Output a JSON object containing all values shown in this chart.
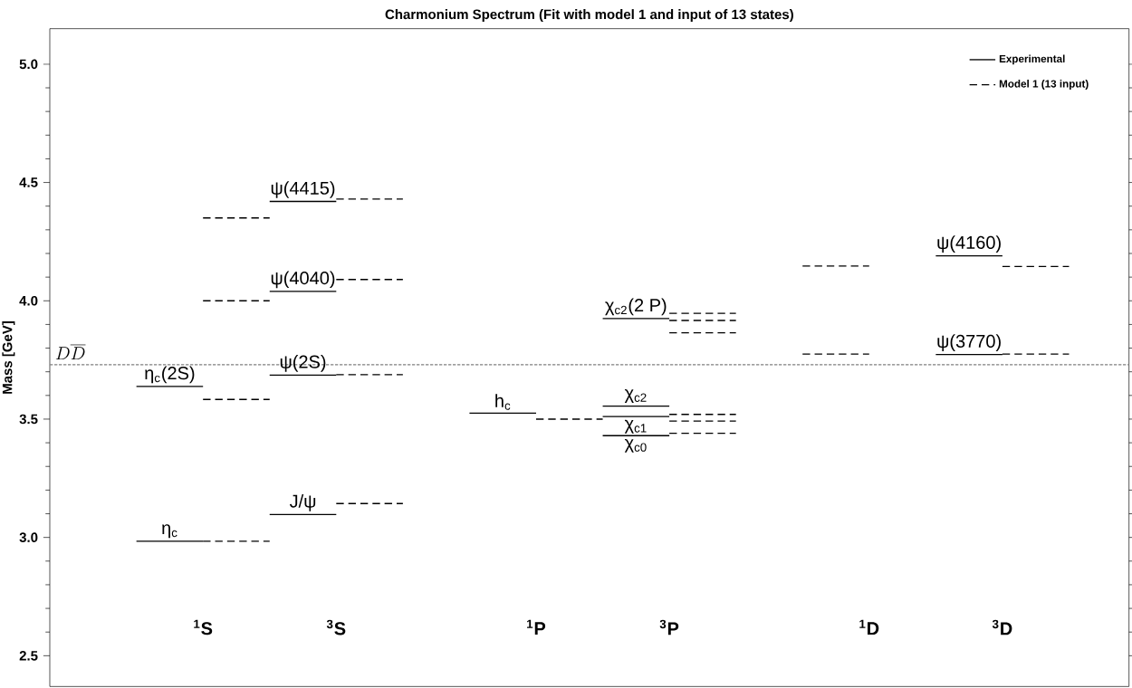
{
  "chart_data": {
    "type": "line",
    "title": "Charmonium Spectrum (Fit with model 1 and input of 13 states)",
    "ylabel": "Mass [GeV]",
    "categories": [
      null,
      null,
      null,
      null,
      "$^{1}$S",
      null,
      null,
      null,
      "$^{3}$S",
      null,
      null,
      null,
      null,
      null,
      "$^{1}$P",
      null,
      null,
      null,
      "$^{3}$P",
      null,
      null,
      null,
      null,
      null,
      "$^{1}$D",
      null,
      null,
      null,
      "$^{3}$D",
      null,
      null,
      null,
      null
    ],
    "ylim": [
      2.37,
      5.15
    ],
    "yticks": [
      2.5,
      {
        "value": 3,
        "label": "3.0"
      },
      3.5,
      {
        "value": 4,
        "label": "4.0"
      },
      4.5,
      {
        "value": 5,
        "label": "5.0"
      }
    ],
    "series": [
      {
        "name": "Experimental",
        "color": "#000000",
        "line_style": "solid",
        "values": [
          null,
          null,
          2.984,
          2.984,
          2.984,
          null,
          3.097,
          3.097,
          3.097,
          null,
          null,
          null,
          3.525,
          3.525,
          3.525,
          null,
          3.43,
          3.43,
          3.43,
          null,
          null,
          null,
          null,
          null,
          null,
          null,
          3.773,
          3.773,
          3.773,
          null,
          null,
          null,
          null
        ]
      },
      {
        "color": "#000000",
        "line_style": "solid",
        "values": [
          null,
          null,
          3.638,
          3.638,
          3.638,
          null,
          3.686,
          3.686,
          3.686,
          null,
          null,
          null,
          null,
          null,
          null,
          null,
          3.511,
          3.511,
          3.511,
          null,
          null,
          null,
          null,
          null,
          null,
          null,
          4.19,
          4.19,
          4.19,
          null,
          null,
          null,
          null
        ]
      },
      {
        "color": "#000000",
        "line_style": "solid",
        "values": [
          null,
          null,
          null,
          null,
          null,
          null,
          4.04,
          4.04,
          4.04,
          null,
          null,
          null,
          null,
          null,
          null,
          null,
          3.555,
          3.555,
          3.555,
          null,
          null,
          null,
          null,
          null,
          null,
          null,
          null,
          null,
          null,
          null,
          null,
          null,
          null
        ]
      },
      {
        "color": "#000000",
        "line_style": "solid",
        "values": [
          null,
          null,
          null,
          null,
          null,
          null,
          4.42,
          4.42,
          4.42,
          null,
          null,
          null,
          null,
          null,
          null,
          null,
          3.925,
          3.925,
          3.925,
          null,
          null,
          null,
          null,
          null,
          null,
          null,
          null,
          null,
          null,
          null,
          null,
          null,
          null
        ]
      },
      {
        "name": "Model 1 (13 input)",
        "color": "#000000",
        "line_style": "dashed",
        "values": [
          null,
          null,
          null,
          null,
          2.984,
          2.984,
          2.984,
          null,
          3.143,
          3.143,
          3.143,
          null,
          null,
          null,
          3.5,
          3.5,
          3.5,
          null,
          3.44,
          3.44,
          3.44,
          null,
          3.775,
          3.775,
          3.775,
          null,
          null,
          null,
          3.775,
          3.775,
          3.775,
          null,
          null
        ]
      },
      {
        "color": "#000000",
        "line_style": "dashed",
        "values": [
          null,
          null,
          null,
          null,
          3.583,
          3.583,
          3.583,
          null,
          3.688,
          3.688,
          3.688,
          null,
          null,
          null,
          null,
          null,
          null,
          null,
          3.492,
          3.492,
          3.492,
          null,
          4.147,
          4.147,
          4.147,
          null,
          null,
          null,
          4.145,
          4.145,
          4.145,
          null,
          null
        ]
      },
      {
        "color": "#000000",
        "line_style": "dashed",
        "values": [
          null,
          null,
          null,
          null,
          4.0,
          4.0,
          4.0,
          null,
          4.09,
          4.09,
          4.09,
          null,
          null,
          null,
          null,
          null,
          null,
          null,
          3.52,
          3.52,
          3.52,
          null,
          null,
          null,
          null,
          null,
          null,
          null,
          null,
          null,
          null,
          null,
          null
        ]
      },
      {
        "color": "#000000",
        "line_style": "dashed",
        "values": [
          null,
          null,
          null,
          null,
          4.35,
          4.35,
          4.35,
          null,
          4.43,
          4.43,
          4.43,
          null,
          null,
          null,
          null,
          null,
          null,
          null,
          3.865,
          3.865,
          3.865,
          null,
          null,
          null,
          null,
          null,
          null,
          null,
          null,
          null,
          null,
          null,
          null
        ]
      },
      {
        "color": "#000000",
        "line_style": "dashed",
        "values": [
          null,
          null,
          null,
          null,
          null,
          null,
          null,
          null,
          null,
          null,
          null,
          null,
          null,
          null,
          null,
          null,
          null,
          null,
          3.917,
          3.917,
          3.917,
          null,
          null,
          null,
          null,
          null,
          null,
          null,
          null,
          null,
          null,
          null,
          null
        ]
      },
      {
        "color": "#000000",
        "line_style": "dashed",
        "values": [
          null,
          null,
          null,
          null,
          null,
          null,
          null,
          null,
          null,
          null,
          null,
          null,
          null,
          null,
          null,
          null,
          null,
          null,
          3.947,
          3.947,
          3.947,
          null,
          null,
          null,
          null,
          null,
          null,
          null,
          null,
          null,
          null,
          null,
          null
        ]
      }
    ],
    "ref_lines": [
      {
        "axis": "y",
        "value": 3.73,
        "label": "D\\overline{D}",
        "color": "#808080",
        "line_style": "dashed"
      }
    ],
    "annotations": [
      {
        "text": "η$_{c}$",
        "y": 2.984
      },
      {
        "text": "η$_{c}$(2S)",
        "y": 3.638
      },
      {
        "text": "J/ψ",
        "y": 3.097
      },
      {
        "text": "ψ(2S)",
        "y": 3.686
      },
      {
        "text": "ψ(4040)",
        "y": 4.04
      },
      {
        "text": "ψ(4415)",
        "y": 4.42
      },
      {
        "text": "h$_{c}$",
        "y": 3.525
      },
      {
        "text": "χ$_{c0}$",
        "y": 3.43
      },
      {
        "text": "χ$_{c1}$",
        "y": 3.511
      },
      {
        "text": "χ$_{c2}$",
        "y": 3.555
      },
      {
        "text": "χ$_{c2}$(2 P)",
        "y": 3.925
      },
      {
        "text": "ψ(3770)",
        "y": 3.773
      },
      {
        "text": "ψ(4160)",
        "y": 4.19
      }
    ],
    "legend": "top right"
  }
}
